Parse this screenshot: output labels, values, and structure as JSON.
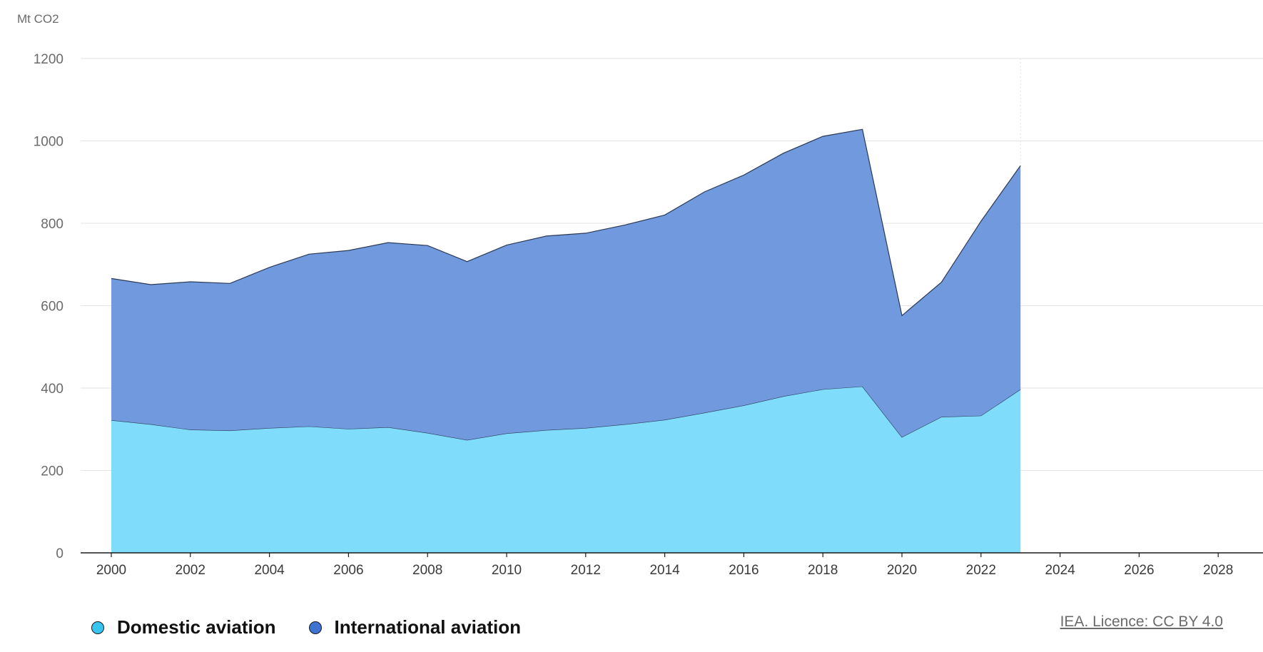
{
  "chart_data": {
    "type": "area",
    "stacked": true,
    "ylabel": "Mt CO2",
    "ylim": [
      0,
      1200
    ],
    "yticks": [
      0,
      200,
      400,
      600,
      800,
      1000,
      1200
    ],
    "xlim": [
      2000,
      2029
    ],
    "xticks": [
      2000,
      2002,
      2004,
      2006,
      2008,
      2010,
      2012,
      2014,
      2016,
      2018,
      2020,
      2022,
      2024,
      2026,
      2028
    ],
    "x": [
      2000,
      2001,
      2002,
      2003,
      2004,
      2005,
      2006,
      2007,
      2008,
      2009,
      2010,
      2011,
      2012,
      2013,
      2014,
      2015,
      2016,
      2017,
      2018,
      2019,
      2020,
      2021,
      2022,
      2023
    ],
    "series": [
      {
        "name": "Domestic aviation",
        "color": "#80dcfb",
        "values": [
          322,
          312,
          299,
          297,
          303,
          307,
          301,
          305,
          291,
          274,
          290,
          298,
          303,
          312,
          323,
          340,
          358,
          380,
          397,
          404,
          281,
          330,
          333,
          397
        ]
      },
      {
        "name": "International aviation",
        "color": "#7099de",
        "values": [
          344,
          339,
          359,
          357,
          390,
          418,
          433,
          448,
          455,
          433,
          457,
          471,
          473,
          484,
          497,
          536,
          559,
          590,
          614,
          624,
          295,
          327,
          472,
          543
        ]
      }
    ],
    "legend_position": "bottom-left"
  },
  "credit": {
    "text": "IEA. Licence: CC BY 4.0"
  }
}
